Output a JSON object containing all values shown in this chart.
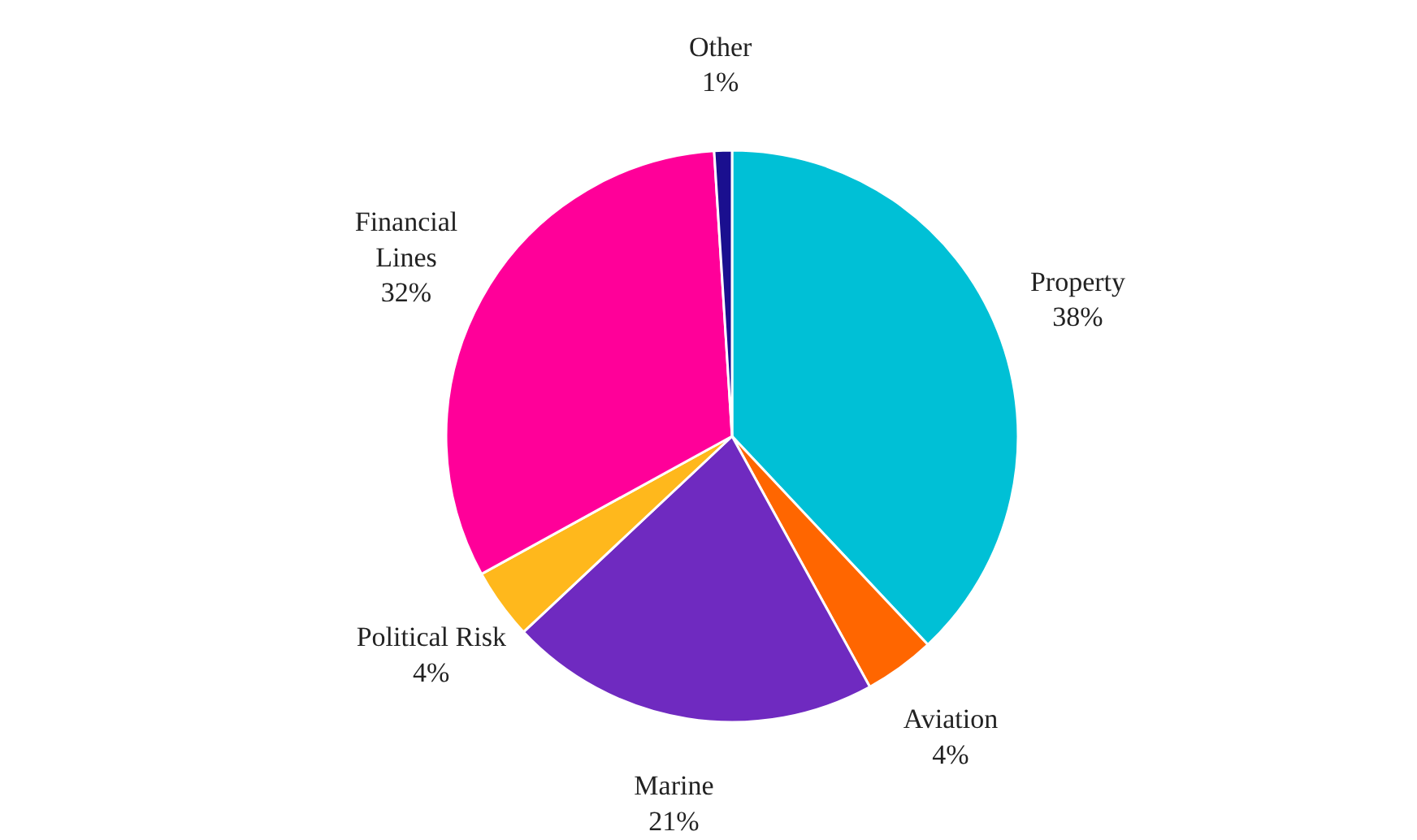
{
  "chart_data": {
    "type": "pie",
    "categories": [
      "Property",
      "Aviation",
      "Marine",
      "Political Risk",
      "Financial Lines",
      "Other"
    ],
    "values": [
      38,
      4,
      21,
      4,
      32,
      1
    ],
    "colors": [
      "#00c0d6",
      "#ff6600",
      "#6f2ac0",
      "#ffb81c",
      "#ff0099",
      "#1a0f8f"
    ],
    "value_labels": [
      "38%",
      "4%",
      "21%",
      "4%",
      "32%",
      "1%"
    ],
    "legend": false
  }
}
